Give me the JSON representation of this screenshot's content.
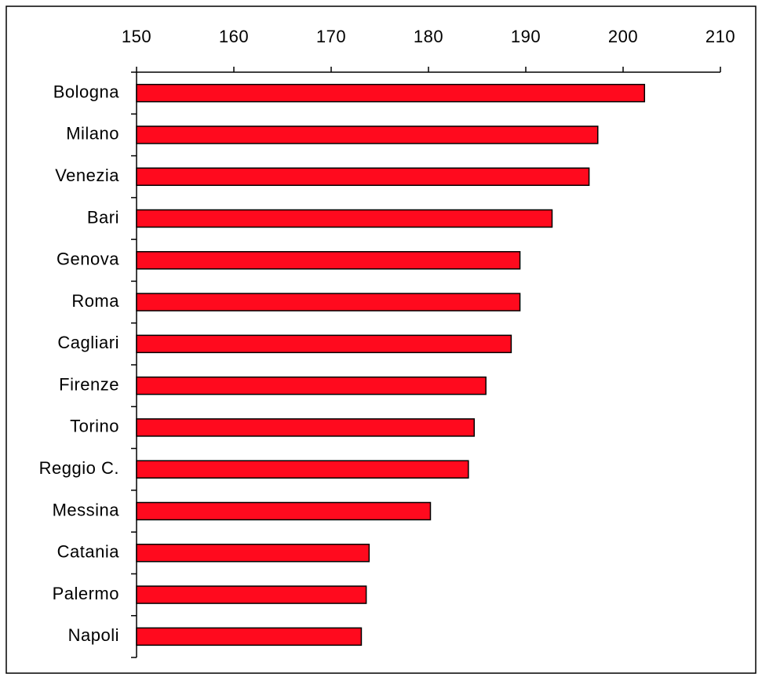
{
  "chart_data": {
    "type": "barh",
    "categories": [
      "Bologna",
      "Milano",
      "Venezia",
      "Bari",
      "Genova",
      "Roma",
      "Cagliari",
      "Firenze",
      "Torino",
      "Reggio C.",
      "Messina",
      "Catania",
      "Palermo",
      "Napoli"
    ],
    "values": [
      202.2,
      197.4,
      196.5,
      192.7,
      189.4,
      189.4,
      188.5,
      185.9,
      184.7,
      184.1,
      180.2,
      173.9,
      173.6,
      173.1
    ],
    "color": "#ff0a1e",
    "xlim": [
      150,
      210
    ],
    "xticks": [
      150,
      160,
      170,
      180,
      190,
      200,
      210
    ]
  }
}
